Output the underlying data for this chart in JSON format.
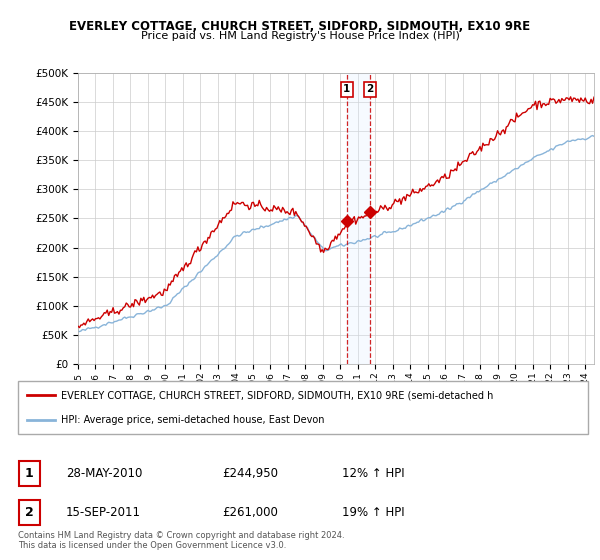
{
  "title1": "EVERLEY COTTAGE, CHURCH STREET, SIDFORD, SIDMOUTH, EX10 9RE",
  "title2": "Price paid vs. HM Land Registry's House Price Index (HPI)",
  "background_color": "#ffffff",
  "grid_color": "#cccccc",
  "sale1_date": "28-MAY-2010",
  "sale1_price": 244950,
  "sale1_hpi": "12% ↑ HPI",
  "sale2_date": "15-SEP-2011",
  "sale2_price": 261000,
  "sale2_hpi": "19% ↑ HPI",
  "legend_label1": "EVERLEY COTTAGE, CHURCH STREET, SIDFORD, SIDMOUTH, EX10 9RE (semi-detached h",
  "legend_label2": "HPI: Average price, semi-detached house, East Devon",
  "footnote": "Contains HM Land Registry data © Crown copyright and database right 2024.\nThis data is licensed under the Open Government Licence v3.0.",
  "red_color": "#cc0000",
  "blue_color": "#89b4d9",
  "shading_color": "#ddeeff",
  "ylim_max": 500000,
  "ylim_min": 0,
  "sale1_t": 2010.375,
  "sale2_t": 2011.708
}
